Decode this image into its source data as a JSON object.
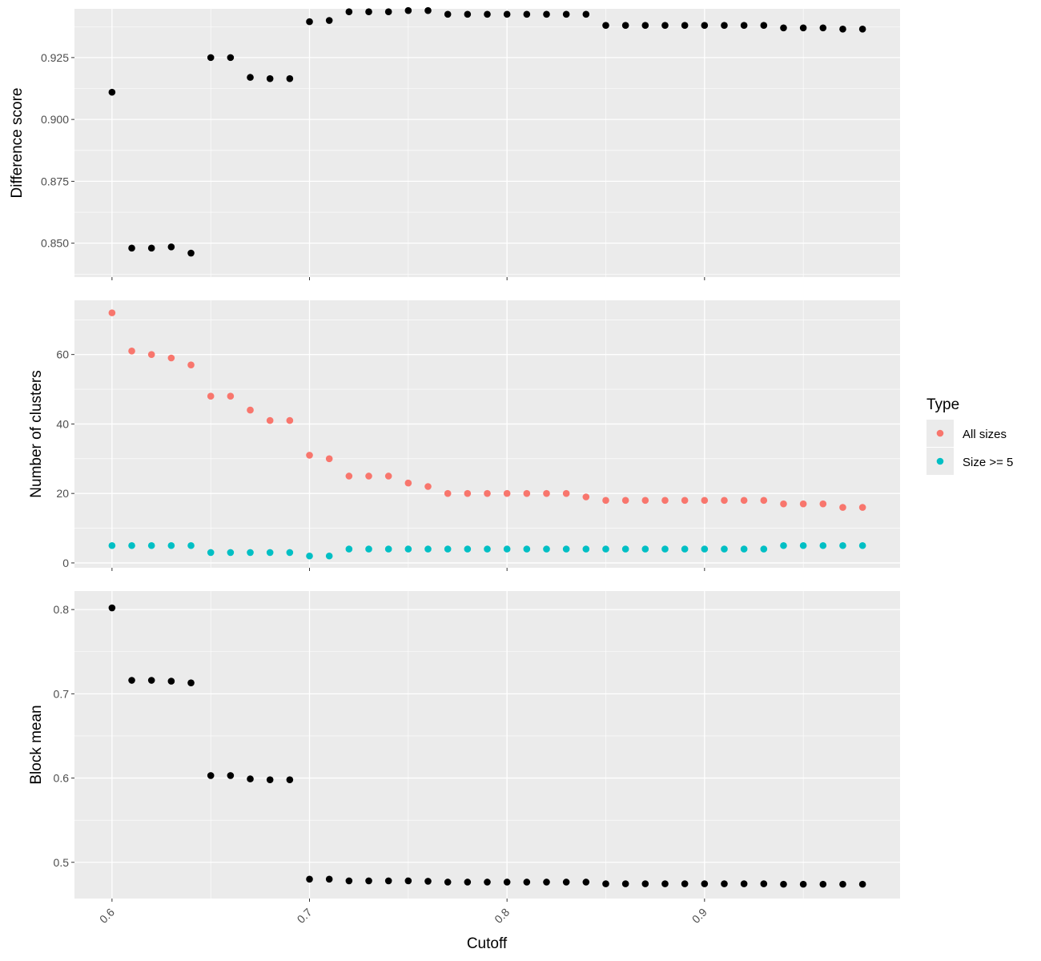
{
  "chart_data": {
    "type": "scatter",
    "xlabel": "Cutoff",
    "xlim": [
      0.581,
      0.999
    ],
    "x_ticks": [
      0.6,
      0.7,
      0.8,
      0.9
    ],
    "x_tick_labels": [
      "0.6",
      "0.7",
      "0.8",
      "0.9"
    ],
    "x": [
      0.6,
      0.61,
      0.62,
      0.63,
      0.64,
      0.65,
      0.66,
      0.67,
      0.68,
      0.69,
      0.7,
      0.71,
      0.72,
      0.73,
      0.74,
      0.75,
      0.76,
      0.77,
      0.78,
      0.79,
      0.8,
      0.81,
      0.82,
      0.83,
      0.84,
      0.85,
      0.86,
      0.87,
      0.88,
      0.89,
      0.9,
      0.91,
      0.92,
      0.93,
      0.94,
      0.95,
      0.96,
      0.97,
      0.98
    ],
    "grid": true,
    "panels": [
      {
        "ylabel": "Difference score",
        "ylim": [
          0.8363,
          0.9447
        ],
        "y_ticks": [
          0.85,
          0.875,
          0.9,
          0.925
        ],
        "y_tick_labels": [
          "0.850",
          "0.875",
          "0.900",
          "0.925"
        ],
        "series": [
          {
            "color": "#000000",
            "values": [
              0.911,
              0.848,
              0.848,
              0.8485,
              0.846,
              0.925,
              0.925,
              0.917,
              0.9165,
              0.9165,
              0.9395,
              0.94,
              0.9435,
              0.9435,
              0.9435,
              0.944,
              0.944,
              0.9425,
              0.9425,
              0.9425,
              0.9425,
              0.9425,
              0.9425,
              0.9425,
              0.9425,
              0.938,
              0.938,
              0.938,
              0.938,
              0.938,
              0.938,
              0.938,
              0.938,
              0.938,
              0.937,
              0.937,
              0.937,
              0.9365,
              0.9365
            ]
          }
        ]
      },
      {
        "ylabel": "Number of clusters",
        "ylim": [
          -1.4,
          75.6
        ],
        "y_ticks": [
          0,
          20,
          40,
          60
        ],
        "y_tick_labels": [
          "0",
          "20",
          "40",
          "60"
        ],
        "series": [
          {
            "name": "All sizes",
            "color": "#f8766d",
            "values": [
              72,
              61,
              60,
              59,
              57,
              48,
              48,
              44,
              41,
              41,
              31,
              30,
              25,
              25,
              25,
              23,
              22,
              20,
              20,
              20,
              20,
              20,
              20,
              20,
              19,
              18,
              18,
              18,
              18,
              18,
              18,
              18,
              18,
              18,
              17,
              17,
              17,
              16,
              16
            ]
          },
          {
            "name": "Size >= 5",
            "color": "#00bfc4",
            "values": [
              5,
              5,
              5,
              5,
              5,
              3,
              3,
              3,
              3,
              3,
              2,
              2,
              4,
              4,
              4,
              4,
              4,
              4,
              4,
              4,
              4,
              4,
              4,
              4,
              4,
              4,
              4,
              4,
              4,
              4,
              4,
              4,
              4,
              4,
              5,
              5,
              5,
              5,
              5
            ]
          }
        ]
      },
      {
        "ylabel": "Block mean",
        "ylim": [
          0.457,
          0.822
        ],
        "y_ticks": [
          0.5,
          0.6,
          0.7,
          0.8
        ],
        "y_tick_labels": [
          "0.5",
          "0.6",
          "0.7",
          "0.8"
        ],
        "series": [
          {
            "color": "#000000",
            "values": [
              0.802,
              0.716,
              0.716,
              0.715,
              0.713,
              0.603,
              0.603,
              0.599,
              0.598,
              0.598,
              0.48,
              0.48,
              0.478,
              0.478,
              0.478,
              0.478,
              0.4775,
              0.4765,
              0.4765,
              0.4765,
              0.4765,
              0.4765,
              0.4765,
              0.4765,
              0.4765,
              0.4745,
              0.4745,
              0.4745,
              0.4745,
              0.4745,
              0.4745,
              0.4745,
              0.4745,
              0.4745,
              0.474,
              0.474,
              0.474,
              0.474,
              0.474
            ]
          }
        ]
      }
    ],
    "legend": {
      "title": "Type",
      "position": "right",
      "entries": [
        {
          "label": "All sizes",
          "color": "#f8766d"
        },
        {
          "label": "Size >= 5",
          "color": "#00bfc4"
        }
      ]
    },
    "background": "#ebebeb",
    "gridline_color": "#ffffff"
  }
}
